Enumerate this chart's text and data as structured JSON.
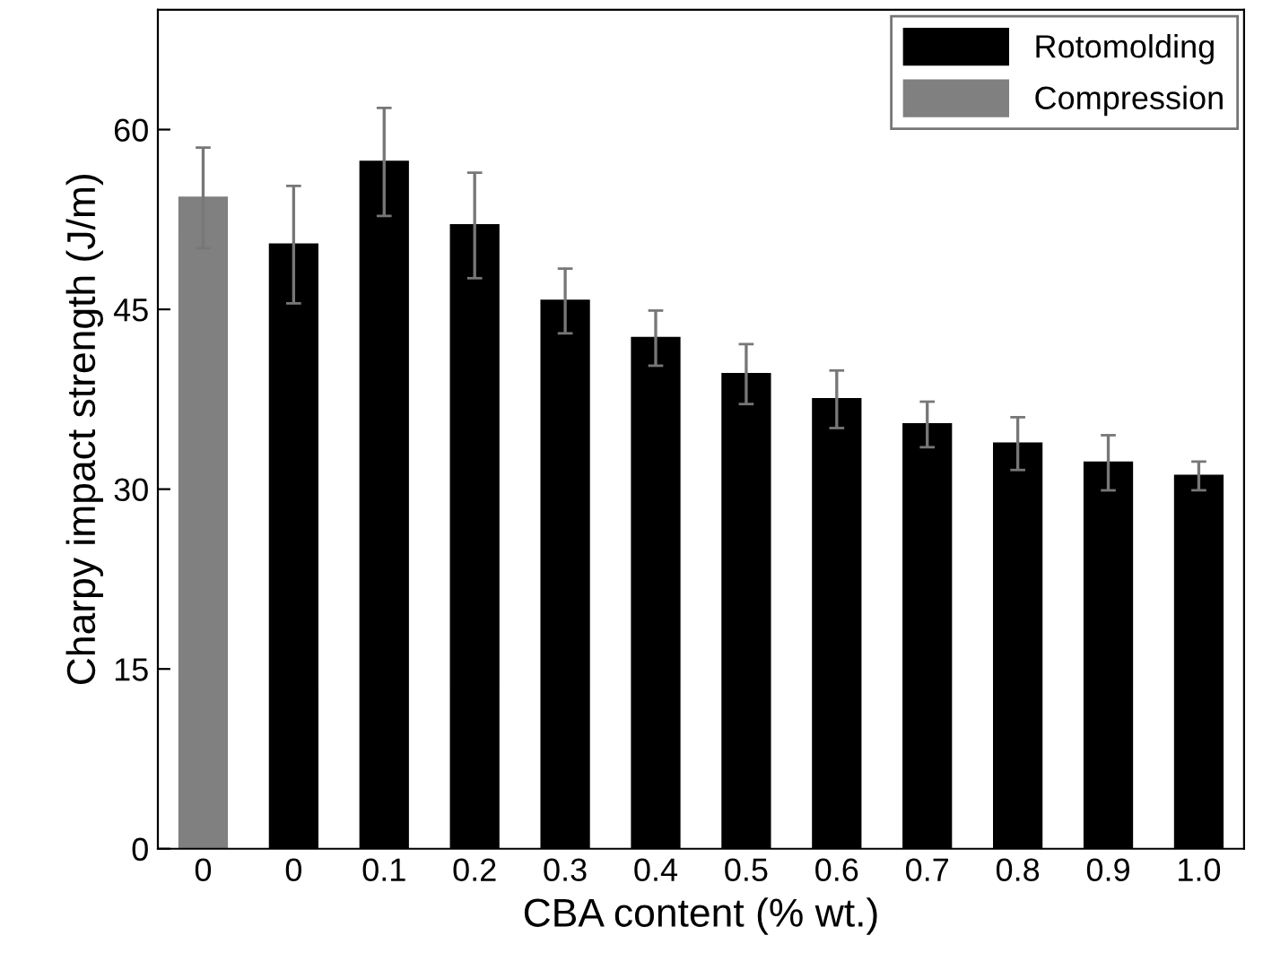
{
  "chart_data": {
    "type": "bar",
    "xlabel": "CBA content (% wt.)",
    "ylabel": "Charpy impact strength (J/m)",
    "categories": [
      "0",
      "0",
      "0.1",
      "0.2",
      "0.3",
      "0.4",
      "0.5",
      "0.6",
      "0.7",
      "0.8",
      "0.9",
      "1.0"
    ],
    "series": [
      {
        "name": "Rotomolding",
        "color": "#000000",
        "values": [
          null,
          50.4,
          57.3,
          52.0,
          45.7,
          42.6,
          39.6,
          37.5,
          35.4,
          33.8,
          32.2,
          31.1
        ],
        "errors": [
          null,
          4.9,
          4.5,
          4.4,
          2.7,
          2.3,
          2.5,
          2.4,
          1.9,
          2.2,
          2.3,
          1.2
        ]
      },
      {
        "name": "Compression",
        "color": "#808080",
        "values": [
          54.3,
          null,
          null,
          null,
          null,
          null,
          null,
          null,
          null,
          null,
          null,
          null
        ],
        "errors": [
          4.2,
          null,
          null,
          null,
          null,
          null,
          null,
          null,
          null,
          null,
          null,
          null
        ]
      }
    ],
    "ylim": [
      0,
      70
    ],
    "yticks": [
      0,
      15,
      30,
      45,
      60
    ],
    "grid": false,
    "legend": "top right"
  }
}
